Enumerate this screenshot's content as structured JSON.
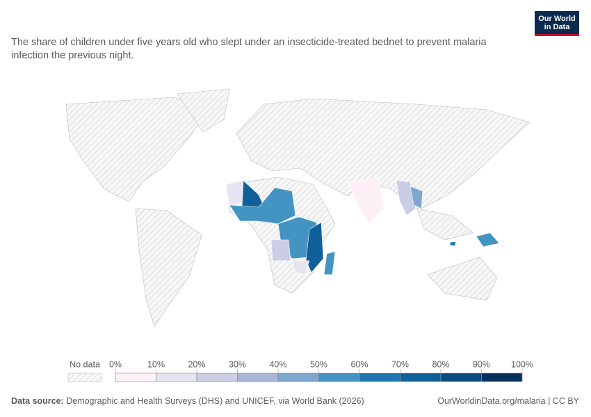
{
  "header": {
    "logo": [
      "Our World",
      "in Data"
    ],
    "subtitle": "The share of children under five years old who slept under an insecticide-treated bednet to prevent malaria infection the previous night."
  },
  "legend": {
    "no_data": "No data",
    "bins": [
      {
        "value": 0,
        "label": "0%"
      },
      {
        "value": 10,
        "label": "10%"
      },
      {
        "value": 20,
        "label": "20%"
      },
      {
        "value": 30,
        "label": "30%"
      },
      {
        "value": 40,
        "label": "40%"
      },
      {
        "value": 50,
        "label": "50%"
      },
      {
        "value": 60,
        "label": "60%"
      },
      {
        "value": 70,
        "label": "70%"
      },
      {
        "value": 80,
        "label": "80%"
      },
      {
        "value": 90,
        "label": "90%"
      },
      {
        "value": 100,
        "label": "100%"
      }
    ],
    "colors": [
      "#fdf0f6",
      "#e7e4f1",
      "#cacde4",
      "#a9b6d7",
      "#7da7cf",
      "#4393c3",
      "#1f76b0",
      "#0f5f9a",
      "#0a4a80",
      "#08305c"
    ]
  },
  "footer": {
    "source_label": "Data source:",
    "source": "Demographic and Health Surveys (DHS) and UNICEF, via World Bank (2026)",
    "link": "OurWorldinData.org/malaria | CC BY"
  }
}
